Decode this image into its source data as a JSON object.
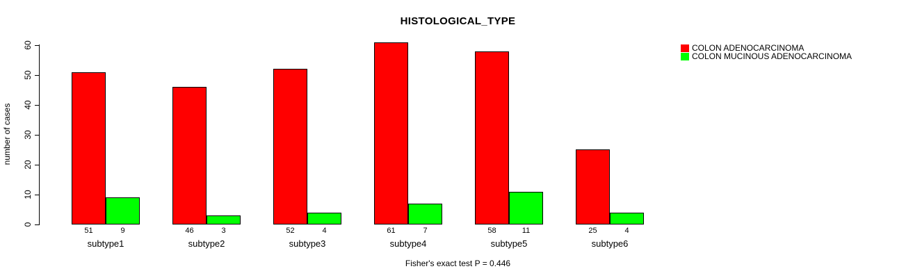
{
  "chart_data": {
    "type": "bar",
    "title": "HISTOLOGICAL_TYPE",
    "xlabel": "",
    "ylabel": "number of cases",
    "ylim": [
      0,
      60
    ],
    "yticks": [
      0,
      10,
      20,
      30,
      40,
      50,
      60
    ],
    "grid": false,
    "legend_position": "top-right",
    "categories": [
      "subtype1",
      "subtype2",
      "subtype3",
      "subtype4",
      "subtype5",
      "subtype6"
    ],
    "series": [
      {
        "name": "COLON ADENOCARCINOMA",
        "color": "#ff0000",
        "values": [
          51,
          46,
          52,
          61,
          58,
          25
        ]
      },
      {
        "name": "COLON MUCINOUS ADENOCARCINOMA",
        "color": "#00ff00",
        "values": [
          9,
          3,
          4,
          7,
          11,
          4
        ]
      }
    ],
    "bar_value_labels_shown": true,
    "footnote": "Fisher's exact test P = 0.446"
  },
  "colors": {
    "series_red": "#ff0000",
    "series_green": "#00ff00",
    "axis": "#000000",
    "background": "#ffffff"
  }
}
